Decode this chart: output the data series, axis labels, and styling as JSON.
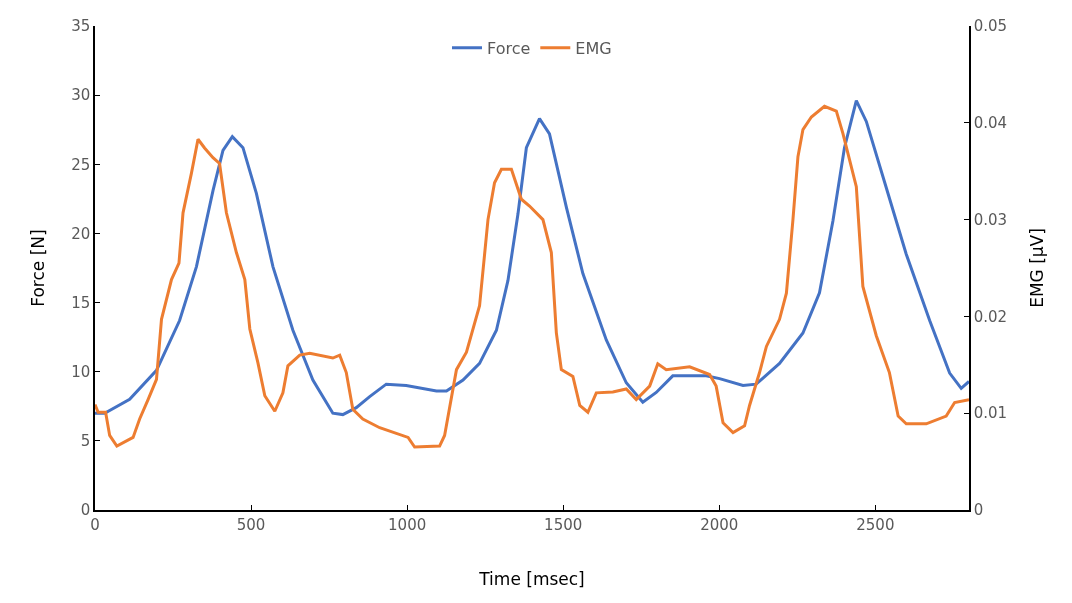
{
  "chart_data": {
    "type": "line",
    "xlabel": "Time [msec]",
    "ylabel": "Force [N]",
    "y2label": "EMG [µV]",
    "xlim": [
      0,
      2800
    ],
    "xticks": [
      0,
      500,
      1000,
      1500,
      2000,
      2500
    ],
    "ylim": [
      0,
      35
    ],
    "yticks": [
      0,
      5,
      10,
      15,
      20,
      25,
      30,
      35
    ],
    "y2lim": [
      0,
      0.05
    ],
    "y2ticks": [
      0,
      0.01,
      0.02,
      0.03,
      0.04,
      0.05
    ],
    "legend": "top",
    "marker": "none",
    "line_style": "solid",
    "series": [
      {
        "name": "Force",
        "color": "#4472c4",
        "x": [
          0,
          31,
          111,
          197,
          271,
          325,
          378,
          410,
          440,
          474,
          517,
          570,
          634,
          698,
          762,
          794,
          837,
          880,
          933,
          997,
          1094,
          1126,
          1179,
          1232,
          1286,
          1323,
          1355,
          1382,
          1424,
          1456,
          1510,
          1563,
          1638,
          1702,
          1755,
          1798,
          1851,
          1958,
          2001,
          2076,
          2118,
          2193,
          2268,
          2321,
          2364,
          2401,
          2439,
          2471,
          2535,
          2599,
          2674,
          2738,
          2775,
          2800
        ],
        "values": [
          7.0,
          7.0,
          8.0,
          10.1,
          13.7,
          17.6,
          23.1,
          26.0,
          27.0,
          26.2,
          22.9,
          17.6,
          13.0,
          9.4,
          7.0,
          6.9,
          7.4,
          8.2,
          9.1,
          9.0,
          8.6,
          8.6,
          9.4,
          10.6,
          13.0,
          16.6,
          21.4,
          26.2,
          28.3,
          27.2,
          21.9,
          17.1,
          12.3,
          9.2,
          7.8,
          8.5,
          9.7,
          9.7,
          9.5,
          9.0,
          9.1,
          10.6,
          12.8,
          15.7,
          20.9,
          26.2,
          29.6,
          28.1,
          23.3,
          18.5,
          13.7,
          9.9,
          8.8,
          9.3
        ]
      },
      {
        "name": "EMG",
        "color": "#ed7d31",
        "axis": "y2",
        "x": [
          0,
          10,
          34,
          47,
          70,
          122,
          143,
          170,
          197,
          213,
          245,
          269,
          282,
          309,
          330,
          351,
          378,
          399,
          421,
          453,
          480,
          496,
          522,
          544,
          576,
          602,
          618,
          656,
          688,
          762,
          784,
          805,
          826,
          858,
          912,
          1003,
          1024,
          1104,
          1120,
          1158,
          1190,
          1232,
          1259,
          1280,
          1302,
          1334,
          1366,
          1392,
          1435,
          1462,
          1478,
          1494,
          1531,
          1553,
          1579,
          1606,
          1659,
          1702,
          1734,
          1777,
          1803,
          1830,
          1905,
          1969,
          1990,
          2012,
          2044,
          2081,
          2097,
          2129,
          2151,
          2193,
          2215,
          2236,
          2252,
          2268,
          2295,
          2337,
          2375,
          2396,
          2439,
          2460,
          2503,
          2545,
          2573,
          2599,
          2663,
          2727,
          2754,
          2800
        ],
        "values": [
          0.0109,
          0.0101,
          0.0101,
          0.0077,
          0.0066,
          0.0075,
          0.0094,
          0.0114,
          0.0135,
          0.0197,
          0.0238,
          0.0255,
          0.0307,
          0.0348,
          0.0383,
          0.0374,
          0.0364,
          0.0358,
          0.0307,
          0.0266,
          0.0238,
          0.0187,
          0.0152,
          0.0118,
          0.0102,
          0.0121,
          0.0149,
          0.016,
          0.0162,
          0.0157,
          0.016,
          0.0142,
          0.0104,
          0.0094,
          0.0085,
          0.0075,
          0.0065,
          0.0066,
          0.0077,
          0.0145,
          0.0163,
          0.0211,
          0.03,
          0.0338,
          0.0352,
          0.0352,
          0.0321,
          0.0314,
          0.03,
          0.0266,
          0.0183,
          0.0145,
          0.0138,
          0.0108,
          0.0101,
          0.0121,
          0.0122,
          0.0125,
          0.0114,
          0.0128,
          0.0151,
          0.0145,
          0.0148,
          0.014,
          0.0128,
          0.009,
          0.008,
          0.0087,
          0.0108,
          0.0142,
          0.0169,
          0.0197,
          0.0224,
          0.03,
          0.0365,
          0.0393,
          0.0406,
          0.0417,
          0.0412,
          0.0389,
          0.0334,
          0.0231,
          0.018,
          0.0142,
          0.0097,
          0.0089,
          0.0089,
          0.0097,
          0.0111,
          0.0114
        ]
      }
    ]
  }
}
